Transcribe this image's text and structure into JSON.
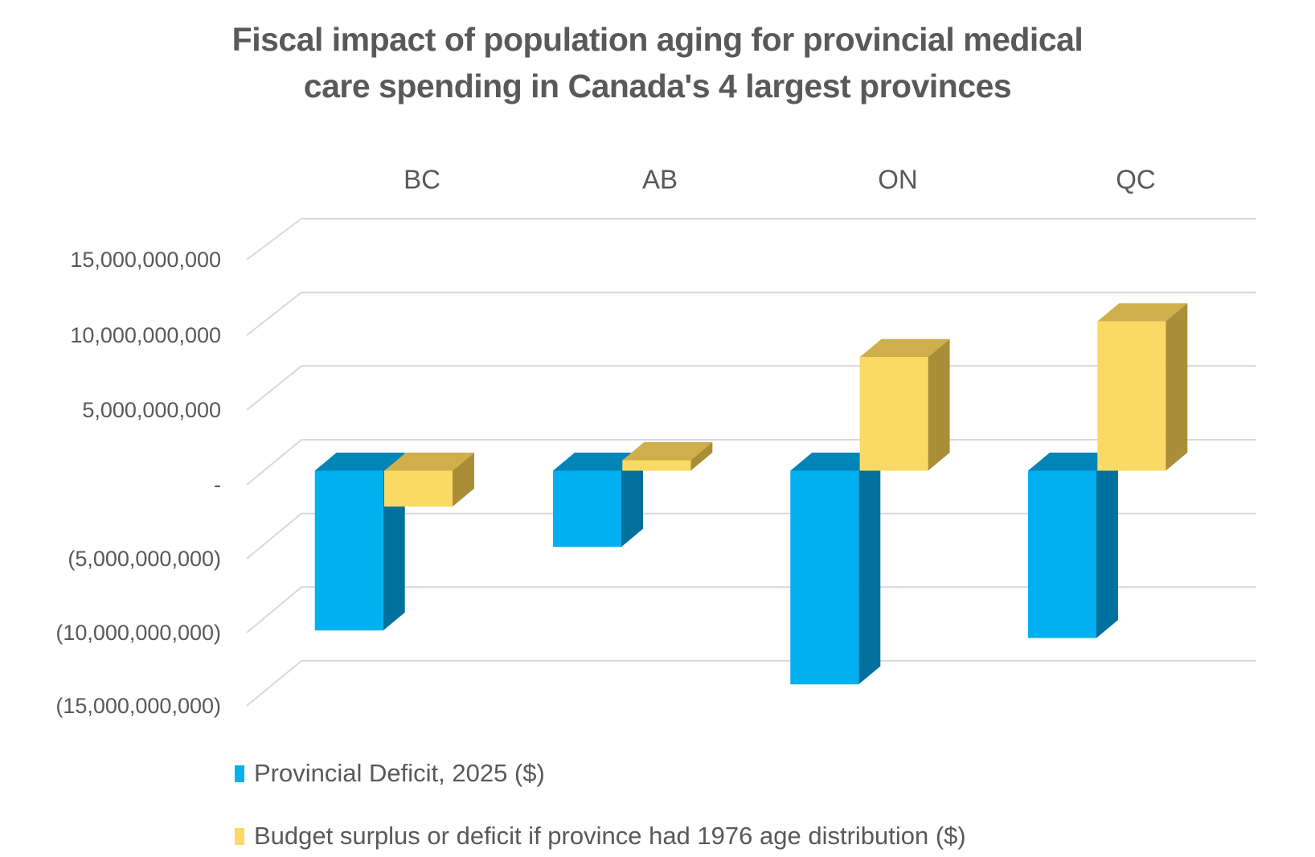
{
  "title": {
    "line1": "Fiscal impact of population aging for provincial medical",
    "line2": "care spending in Canada's 4 largest provinces"
  },
  "colors": {
    "text": "#595959",
    "gridline": "#D9D9D9",
    "background": "#FFFFFF",
    "series_blue": {
      "front": "#00B0F0",
      "top": "#0085B8",
      "side": "#00719C"
    },
    "series_yellow": {
      "front": "#FBD965",
      "top": "#CFAF4B",
      "side": "#AA8E37"
    }
  },
  "chart_data": {
    "type": "bar",
    "style": "3d-clustered-column",
    "title": "Fiscal impact of population aging for provincial medical care spending in Canada's 4 largest provinces",
    "categories": [
      "BC",
      "AB",
      "ON",
      "QC"
    ],
    "series": [
      {
        "name": "Provincial Deficit, 2025 ($)",
        "color": "#00B0F0",
        "values": [
          -10700000000,
          -5100000000,
          -14300000000,
          -11200000000
        ]
      },
      {
        "name": "Budget surplus or deficit if province had 1976 age distribution ($)",
        "color": "#FBD965",
        "values": [
          -2400000000,
          700000000,
          7600000000,
          10000000000
        ]
      }
    ],
    "xlabel": "",
    "ylabel": "",
    "ylim": [
      -15000000000,
      15000000000
    ],
    "y_tick_values": [
      15000000000,
      10000000000,
      5000000000,
      0,
      -5000000000,
      -10000000000,
      -15000000000
    ],
    "y_tick_labels": [
      "15,000,000,000",
      "10,000,000,000",
      "5,000,000,000",
      "-",
      "(5,000,000,000)",
      "(10,000,000,000)",
      "(15,000,000,000)"
    ],
    "grid": true,
    "legend_position": "bottom-left"
  },
  "legend": {
    "items": [
      {
        "label": "Provincial Deficit, 2025 ($)",
        "color": "#00B0F0"
      },
      {
        "label": "Budget surplus or deficit if province had 1976 age distribution ($)",
        "color": "#FBD965"
      }
    ]
  }
}
